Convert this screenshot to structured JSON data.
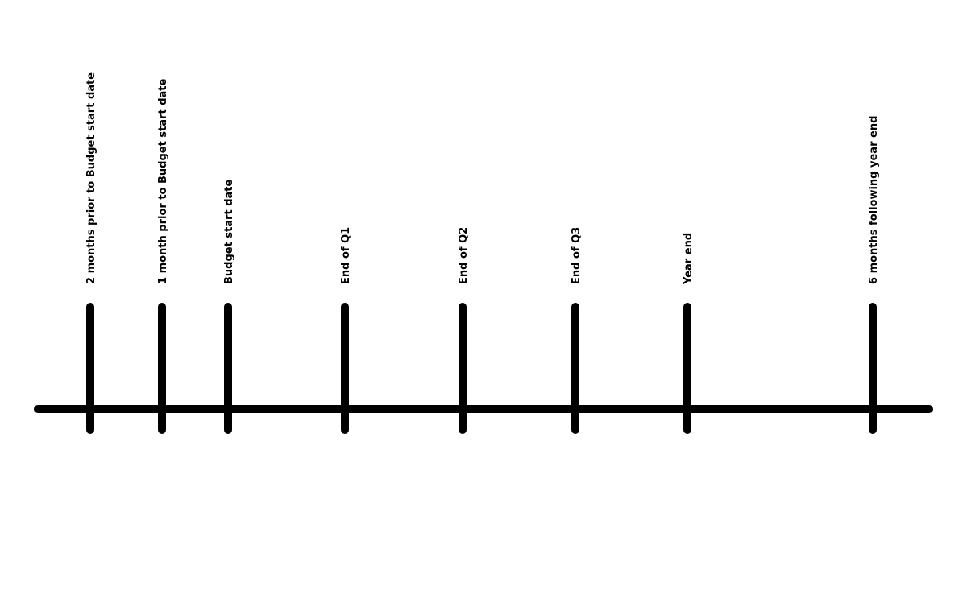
{
  "timeline": {
    "line_color": "#000000",
    "milestones": [
      {
        "label": "2 months prior to Budget start date"
      },
      {
        "label": "1 month prior to Budget start date"
      },
      {
        "label": "Budget start date"
      },
      {
        "label": "End of Q1"
      },
      {
        "label": "End of Q2"
      },
      {
        "label": "End of Q3"
      },
      {
        "label": "Year end"
      },
      {
        "label": "6 months following year end"
      }
    ]
  }
}
